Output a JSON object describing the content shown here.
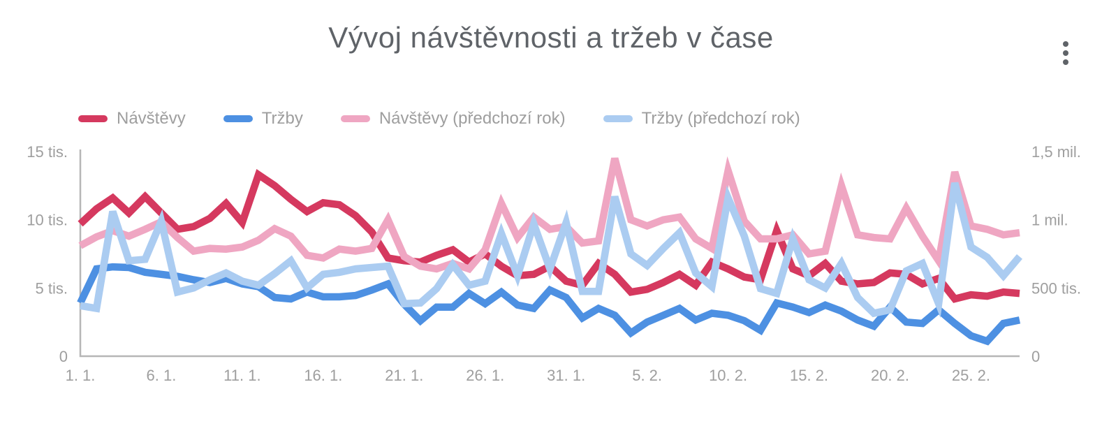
{
  "header": {
    "title": "Vývoj návštěvnosti a tržeb v čase"
  },
  "colors": {
    "title_text": "#5f6368",
    "axis_text": "#9e9e9e",
    "axis_line": "#b6b6b6",
    "legend_text": "#9e9e9e",
    "background": "#ffffff",
    "series_navstevy": "#d5395f",
    "series_trzby": "#4d90e2",
    "series_navstevy_prev": "#efa6c2",
    "series_trzby_prev": "#abccf1"
  },
  "chart_data": {
    "type": "line",
    "title": "Vývoj návštěvnosti a tržeb v čase",
    "legend_position": "top",
    "grid": "off",
    "x_dates": [
      "1. 1.",
      "2. 1.",
      "3. 1.",
      "4. 1.",
      "5. 1.",
      "6. 1.",
      "7. 1.",
      "8. 1.",
      "9. 1.",
      "10. 1.",
      "11. 1.",
      "12. 1.",
      "13. 1.",
      "14. 1.",
      "15. 1.",
      "16. 1.",
      "17. 1.",
      "18. 1.",
      "19. 1.",
      "20. 1.",
      "21. 1.",
      "22. 1.",
      "23. 1.",
      "24. 1.",
      "25. 1.",
      "26. 1.",
      "27. 1.",
      "28. 1.",
      "29. 1.",
      "30. 1.",
      "31. 1.",
      "1. 2.",
      "2. 2.",
      "3. 2.",
      "4. 2.",
      "5. 2.",
      "6. 2.",
      "7. 2.",
      "8. 2.",
      "9. 2.",
      "10. 2.",
      "11. 2.",
      "12. 2.",
      "13. 2.",
      "14. 2.",
      "15. 2.",
      "16. 2.",
      "17. 2.",
      "18. 2.",
      "19. 2.",
      "20. 2.",
      "21. 2.",
      "22. 2.",
      "23. 2.",
      "24. 2.",
      "25. 2.",
      "26. 2.",
      "27. 2.",
      "28. 2."
    ],
    "x_ticks": [
      {
        "index": 0,
        "label": "1. 1."
      },
      {
        "index": 5,
        "label": "6. 1."
      },
      {
        "index": 10,
        "label": "11. 1."
      },
      {
        "index": 15,
        "label": "16. 1."
      },
      {
        "index": 20,
        "label": "21. 1."
      },
      {
        "index": 25,
        "label": "26. 1."
      },
      {
        "index": 30,
        "label": "31. 1."
      },
      {
        "index": 35,
        "label": "5. 2."
      },
      {
        "index": 40,
        "label": "10. 2."
      },
      {
        "index": 45,
        "label": "15. 2."
      },
      {
        "index": 50,
        "label": "20. 2."
      },
      {
        "index": 55,
        "label": "25. 2."
      }
    ],
    "left_axis": {
      "max": 15000,
      "ticks": [
        {
          "value": 0,
          "label": "0"
        },
        {
          "value": 5000,
          "label": "5 tis."
        },
        {
          "value": 10000,
          "label": "10 tis."
        },
        {
          "value": 15000,
          "label": "15 tis."
        }
      ]
    },
    "right_axis": {
      "max": 1500000,
      "ticks": [
        {
          "value": 0,
          "label": "0"
        },
        {
          "value": 500000,
          "label": "500 tis."
        },
        {
          "value": 1000000,
          "label": "1 mil."
        },
        {
          "value": 1500000,
          "label": "1,5 mil."
        }
      ]
    },
    "series": [
      {
        "name": "Návštěvy",
        "color": "#d5395f",
        "axis": "left",
        "values": [
          9700,
          10800,
          11600,
          10500,
          11700,
          10500,
          9300,
          9500,
          10100,
          11200,
          9800,
          13300,
          12500,
          11500,
          10600,
          11250,
          11100,
          10300,
          9100,
          7200,
          7000,
          6900,
          7400,
          7800,
          6900,
          7500,
          6600,
          5900,
          6000,
          6600,
          5500,
          5200,
          6800,
          6000,
          4700,
          4900,
          5400,
          6000,
          5200,
          6900,
          6400,
          5800,
          5600,
          9200,
          6400,
          5900,
          6800,
          5500,
          5300,
          5400,
          6100,
          6000,
          5300,
          5700,
          4200,
          4500,
          4400,
          4700,
          4600
        ]
      },
      {
        "name": "Tržby",
        "color": "#4d90e2",
        "axis": "right",
        "values": [
          390000,
          640000,
          655000,
          650000,
          615000,
          600000,
          585000,
          560000,
          540000,
          570000,
          530000,
          510000,
          430000,
          420000,
          470000,
          435000,
          435000,
          445000,
          485000,
          530000,
          380000,
          260000,
          360000,
          360000,
          460000,
          385000,
          470000,
          375000,
          350000,
          485000,
          430000,
          280000,
          350000,
          300000,
          170000,
          250000,
          300000,
          350000,
          265000,
          315000,
          300000,
          260000,
          190000,
          390000,
          360000,
          320000,
          375000,
          330000,
          265000,
          220000,
          360000,
          250000,
          240000,
          340000,
          240000,
          150000,
          110000,
          240000,
          265000
        ]
      },
      {
        "name": "Návštěvy (předchozí rok)",
        "color": "#efa6c2",
        "axis": "left",
        "values": [
          8100,
          8750,
          9200,
          8800,
          9300,
          9850,
          8700,
          7700,
          7900,
          7850,
          8000,
          8500,
          9350,
          8800,
          7400,
          7200,
          7850,
          7700,
          7900,
          10000,
          7300,
          6600,
          6400,
          6800,
          6400,
          7800,
          11200,
          8700,
          10200,
          9300,
          9500,
          8300,
          8450,
          14500,
          10000,
          9550,
          10000,
          10200,
          8600,
          7900,
          13600,
          9900,
          8600,
          8600,
          8900,
          7500,
          7700,
          12500,
          8900,
          8700,
          8600,
          10850,
          8800,
          7000,
          13500,
          9550,
          9300,
          8900,
          9050
        ]
      },
      {
        "name": "Tržby (předchozí rok)",
        "color": "#abccf1",
        "axis": "right",
        "values": [
          370000,
          350000,
          1060000,
          700000,
          710000,
          990000,
          470000,
          500000,
          560000,
          610000,
          550000,
          520000,
          605000,
          700000,
          500000,
          600000,
          615000,
          640000,
          650000,
          660000,
          385000,
          390000,
          495000,
          670000,
          520000,
          550000,
          900000,
          590000,
          970000,
          640000,
          980000,
          475000,
          475000,
          1170000,
          750000,
          665000,
          790000,
          905000,
          610000,
          510000,
          1160000,
          880000,
          495000,
          460000,
          860000,
          560000,
          500000,
          680000,
          430000,
          315000,
          340000,
          625000,
          680000,
          385000,
          1270000,
          800000,
          725000,
          590000,
          730000
        ]
      }
    ]
  }
}
